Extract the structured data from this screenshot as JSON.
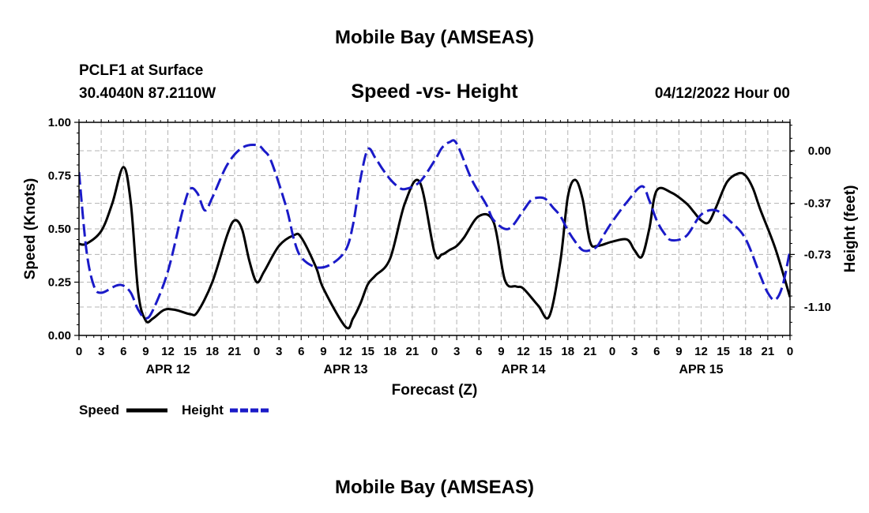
{
  "header": {
    "title": "Mobile Bay (AMSEAS)",
    "station": "PCLF1 at Surface",
    "location": "30.4040N  87.2110W",
    "chart_title": "Speed -vs- Height",
    "datetime": "04/12/2022 Hour 00"
  },
  "footer": {
    "title": "Mobile Bay (AMSEAS)"
  },
  "colors": {
    "speed": "#000000",
    "height": "#1a1ac8",
    "grid": "#b4b4b4"
  },
  "chart_data": {
    "type": "line",
    "title": "Speed -vs- Height",
    "xlabel": "Forecast (Z)",
    "ylabel": "Speed (Knots)",
    "y2label": "Height (feet)",
    "xlim": [
      0,
      96
    ],
    "ylim": [
      0,
      1.0
    ],
    "y2lim": [
      -1.3,
      0.2
    ],
    "xtick_values": [
      0,
      3,
      6,
      9,
      12,
      15,
      18,
      21,
      24,
      27,
      30,
      33,
      36,
      39,
      42,
      45,
      48,
      51,
      54,
      57,
      60,
      63,
      66,
      69,
      72,
      75,
      78,
      81,
      84,
      87,
      90,
      93,
      96
    ],
    "xtick_labels": [
      "0",
      "3",
      "6",
      "9",
      "12",
      "15",
      "18",
      "21",
      "0",
      "3",
      "6",
      "9",
      "12",
      "15",
      "18",
      "21",
      "0",
      "3",
      "6",
      "9",
      "12",
      "15",
      "18",
      "21",
      "0",
      "3",
      "6",
      "9",
      "12",
      "15",
      "18",
      "21",
      "0"
    ],
    "day_labels": [
      {
        "x": 12,
        "label": "APR 12"
      },
      {
        "x": 36,
        "label": "APR 13"
      },
      {
        "x": 60,
        "label": "APR 14"
      },
      {
        "x": 84,
        "label": "APR 15"
      }
    ],
    "ytick_values": [
      0,
      0.25,
      0.5,
      0.75,
      1.0
    ],
    "ytick_labels": [
      "0.00",
      "0.25",
      "0.50",
      "0.75",
      "1.00"
    ],
    "y2tick_values": [
      0.0,
      -0.37,
      -0.73,
      -1.1
    ],
    "y2tick_labels": [
      "0.00",
      "-0.37",
      "-0.73",
      "-1.10"
    ],
    "grid": true,
    "legend_position": "bottom-left",
    "series": [
      {
        "name": "Speed",
        "axis": "left",
        "style": "solid",
        "x": [
          0,
          1,
          3,
          4.5,
          6,
          7,
          8,
          9,
          10,
          11.5,
          13,
          15,
          16,
          18,
          20,
          21,
          22,
          23,
          24,
          25,
          27,
          29,
          30,
          32,
          33,
          36,
          37,
          38,
          39,
          40,
          42,
          44,
          46,
          48,
          49,
          50,
          51,
          52,
          54,
          56,
          57.5,
          59,
          60,
          62,
          63.5,
          65,
          66,
          67,
          68,
          69,
          70,
          72,
          74,
          75,
          76,
          77,
          78,
          80,
          82,
          83,
          84,
          85,
          86,
          87.5,
          89,
          90,
          91,
          92,
          94,
          96
        ],
        "y": [
          0.43,
          0.43,
          0.49,
          0.62,
          0.79,
          0.62,
          0.2,
          0.07,
          0.08,
          0.12,
          0.12,
          0.1,
          0.11,
          0.25,
          0.47,
          0.54,
          0.5,
          0.35,
          0.25,
          0.3,
          0.42,
          0.47,
          0.46,
          0.32,
          0.22,
          0.04,
          0.08,
          0.15,
          0.24,
          0.28,
          0.36,
          0.62,
          0.72,
          0.39,
          0.38,
          0.4,
          0.42,
          0.46,
          0.56,
          0.53,
          0.26,
          0.23,
          0.22,
          0.14,
          0.09,
          0.35,
          0.65,
          0.73,
          0.64,
          0.44,
          0.42,
          0.44,
          0.45,
          0.4,
          0.37,
          0.5,
          0.68,
          0.67,
          0.62,
          0.58,
          0.54,
          0.53,
          0.6,
          0.72,
          0.76,
          0.75,
          0.69,
          0.59,
          0.41,
          0.18
        ]
      },
      {
        "name": "Height",
        "axis": "right",
        "style": "dashed",
        "x": [
          0,
          1,
          2,
          3,
          5,
          6,
          7,
          8,
          9,
          10,
          12,
          14,
          15,
          16,
          17,
          18,
          20,
          22,
          24,
          25,
          26,
          28,
          29,
          30,
          32,
          34,
          36,
          37,
          38,
          39,
          40,
          41,
          42,
          43,
          44,
          46,
          48,
          49,
          50,
          51,
          53,
          55,
          56,
          58,
          60,
          61,
          62,
          63,
          64,
          65,
          66,
          67,
          68,
          69,
          70,
          71,
          72,
          74,
          76,
          77,
          78,
          79,
          80,
          82,
          84,
          86,
          88,
          90,
          92,
          93,
          94,
          95,
          96
        ],
        "y": [
          -0.15,
          -0.7,
          -0.95,
          -1.0,
          -0.95,
          -0.95,
          -1.0,
          -1.12,
          -1.18,
          -1.12,
          -0.85,
          -0.42,
          -0.27,
          -0.3,
          -0.42,
          -0.33,
          -0.1,
          0.02,
          0.04,
          0.0,
          -0.08,
          -0.4,
          -0.62,
          -0.75,
          -0.82,
          -0.8,
          -0.7,
          -0.52,
          -0.2,
          0.01,
          -0.05,
          -0.13,
          -0.2,
          -0.25,
          -0.27,
          -0.22,
          -0.07,
          0.02,
          0.06,
          0.05,
          -0.2,
          -0.38,
          -0.49,
          -0.55,
          -0.42,
          -0.35,
          -0.33,
          -0.34,
          -0.4,
          -0.46,
          -0.56,
          -0.64,
          -0.7,
          -0.7,
          -0.67,
          -0.58,
          -0.5,
          -0.36,
          -0.25,
          -0.35,
          -0.49,
          -0.58,
          -0.63,
          -0.6,
          -0.45,
          -0.42,
          -0.5,
          -0.62,
          -0.88,
          -1.0,
          -1.05,
          -0.95,
          -0.7
        ]
      }
    ]
  },
  "legend": {
    "speed_label": "Speed",
    "height_label": "Height"
  }
}
